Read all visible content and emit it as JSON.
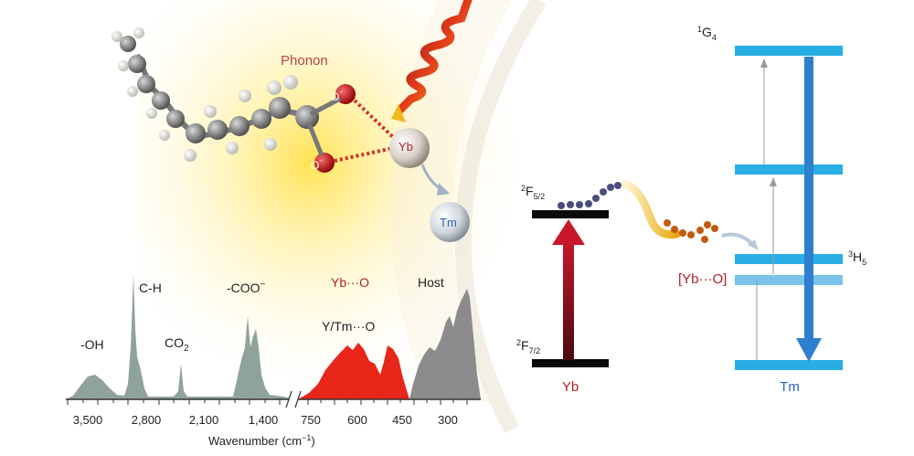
{
  "molecule": {
    "phonon_label": "Phonon",
    "oxygen_label": "O",
    "oxygen_charge": "-",
    "yb_label": "Yb",
    "tm_label": "Tm"
  },
  "spectrum": {
    "peak_labels": {
      "oh": "-OH",
      "ch": "C-H",
      "co2_main": "CO",
      "co2_sub": "2",
      "coo": "-COO",
      "coo_sup": "−",
      "ybo": "Yb···O",
      "ytmo": "Y/Tm···O",
      "host": "Host"
    },
    "ticks": [
      "3,500",
      "2,800",
      "2,100",
      "1,400",
      "750",
      "600",
      "450",
      "300"
    ],
    "axis_label": "Wavenumber (cm",
    "axis_label_sup": "−1",
    "axis_label_end": ")"
  },
  "energy_levels": {
    "yb_upper": "F",
    "yb_upper_pre": "2",
    "yb_upper_sub": "5/2",
    "yb_lower": "F",
    "yb_lower_pre": "2",
    "yb_lower_sub": "7/2",
    "yb_ion": "Yb",
    "transfer_label": "[Yb···O]",
    "tm_g4": "G",
    "tm_g4_pre": "1",
    "tm_g4_sub": "4",
    "tm_h5": "H",
    "tm_h5_pre": "3",
    "tm_h5_sub": "5",
    "tm_ion": "Tm"
  },
  "colors": {
    "ir_peaks": "#8fa39b",
    "red_peaks": "#e8261a",
    "host_peaks": "#8c8c8c",
    "level_black": "#0a0a0a",
    "level_blue": "#29aee4",
    "arrow_down": "#2f7fcf",
    "arrow_up": "#a01622",
    "phonon_text": "#b5444a",
    "yb_red": "#b0202a"
  }
}
